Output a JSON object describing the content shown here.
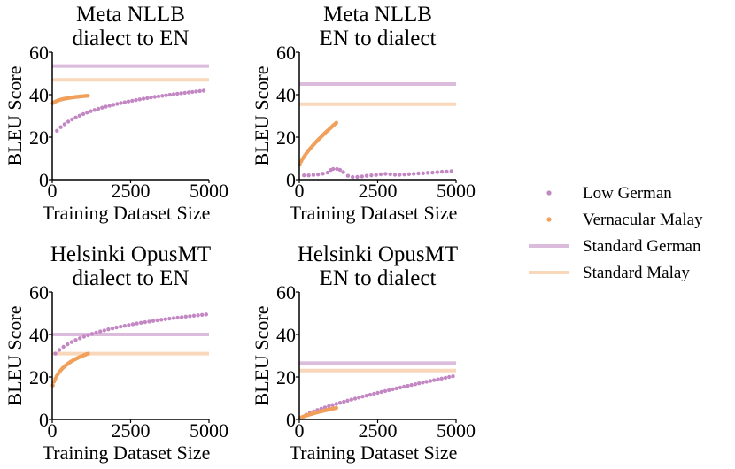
{
  "figure": {
    "legend": {
      "position": "right",
      "entries": [
        {
          "label": "Low German",
          "kind": "dots",
          "color": "#c387c3"
        },
        {
          "label": "Vernacular Malay",
          "kind": "dots",
          "color": "#f0a05a"
        },
        {
          "label": "Standard German",
          "kind": "line",
          "color": "#dcbcdc"
        },
        {
          "label": "Standard Malay",
          "kind": "line",
          "color": "#f9d7bb"
        }
      ]
    }
  },
  "chart_data": [
    {
      "type": "scatter",
      "title": [
        "Meta NLLB",
        "dialect to EN"
      ],
      "xlabel": "Training Dataset Size",
      "ylabel": "BLEU Score",
      "xlim": [
        0,
        5000
      ],
      "ylim": [
        0,
        60
      ],
      "xticks": [
        0,
        2500,
        5000
      ],
      "yticks": [
        0,
        20,
        40,
        60
      ],
      "hlines": [
        {
          "name": "Standard German",
          "value": 53.5
        },
        {
          "name": "Standard Malay",
          "value": 47
        }
      ],
      "series": [
        {
          "name": "Low German",
          "x_start": 150,
          "x_end": 4900,
          "step": 120,
          "curve": "log",
          "y_start": 23,
          "y_end": 42
        },
        {
          "name": "Vernacular Malay",
          "x_start": 20,
          "x_end": 1150,
          "step": 40,
          "curve": "log",
          "y_start": 36,
          "y_end": 39.5
        }
      ]
    },
    {
      "type": "scatter",
      "title": [
        "Meta NLLB",
        "EN to dialect"
      ],
      "xlabel": "Training Dataset Size",
      "ylabel": "BLEU Score",
      "xlim": [
        0,
        5000
      ],
      "ylim": [
        0,
        60
      ],
      "xticks": [
        0,
        2500,
        5000
      ],
      "yticks": [
        0,
        20,
        40,
        60
      ],
      "hlines": [
        {
          "name": "Standard German",
          "value": 45
        },
        {
          "name": "Standard Malay",
          "value": 35.5
        }
      ],
      "series": [
        {
          "name": "Low German",
          "points": [
            [
              150,
              2
            ],
            [
              300,
              2
            ],
            [
              450,
              2.2
            ],
            [
              600,
              2.4
            ],
            [
              750,
              2.8
            ],
            [
              900,
              3.3
            ],
            [
              1000,
              4.5
            ],
            [
              1080,
              5
            ],
            [
              1200,
              5
            ],
            [
              1300,
              4.6
            ],
            [
              1400,
              3.5
            ],
            [
              1550,
              1.8
            ],
            [
              1700,
              1.2
            ],
            [
              1850,
              1.3
            ],
            [
              2000,
              1.5
            ],
            [
              2150,
              1.8
            ],
            [
              2300,
              2
            ],
            [
              2450,
              2.2
            ],
            [
              2600,
              2.5
            ],
            [
              2750,
              2.7
            ],
            [
              2900,
              2.5
            ],
            [
              3050,
              2.3
            ],
            [
              3200,
              2.3
            ],
            [
              3350,
              2.4
            ],
            [
              3500,
              2.6
            ],
            [
              3650,
              2.7
            ],
            [
              3800,
              2.9
            ],
            [
              3950,
              3
            ],
            [
              4100,
              3.2
            ],
            [
              4250,
              3.3
            ],
            [
              4400,
              3.5
            ],
            [
              4550,
              3.7
            ],
            [
              4700,
              3.8
            ],
            [
              4850,
              4
            ]
          ]
        },
        {
          "name": "Vernacular Malay",
          "x_start": 20,
          "x_end": 1200,
          "step": 40,
          "curve": "pow",
          "y_start": 7,
          "y_end": 27
        }
      ]
    },
    {
      "type": "scatter",
      "title": [
        "Helsinki OpusMT",
        "dialect to EN"
      ],
      "xlabel": "Training Dataset Size",
      "ylabel": "BLEU Score",
      "xlim": [
        0,
        5000
      ],
      "ylim": [
        0,
        60
      ],
      "xticks": [
        0,
        2500,
        5000
      ],
      "yticks": [
        0,
        20,
        40,
        60
      ],
      "hlines": [
        {
          "name": "Standard German",
          "value": 40
        },
        {
          "name": "Standard Malay",
          "value": 31
        }
      ],
      "series": [
        {
          "name": "Low German",
          "x_start": 100,
          "x_end": 4950,
          "step": 130,
          "curve": "log",
          "y_start": 31,
          "y_end": 49.5
        },
        {
          "name": "Vernacular Malay",
          "x_start": 20,
          "x_end": 1150,
          "step": 40,
          "curve": "log",
          "y_start": 16,
          "y_end": 31
        }
      ]
    },
    {
      "type": "scatter",
      "title": [
        "Helsinki OpusMT",
        "EN to dialect"
      ],
      "xlabel": "Training Dataset Size",
      "ylabel": "BLEU Score",
      "xlim": [
        0,
        5000
      ],
      "ylim": [
        0,
        60
      ],
      "xticks": [
        0,
        2500,
        5000
      ],
      "yticks": [
        0,
        20,
        40,
        60
      ],
      "hlines": [
        {
          "name": "Standard German",
          "value": 26.5
        },
        {
          "name": "Standard Malay",
          "value": 23
        }
      ],
      "series": [
        {
          "name": "Low German",
          "x_start": 100,
          "x_end": 4950,
          "step": 120,
          "curve": "pow",
          "y_start": 1,
          "y_end": 20.5
        },
        {
          "name": "Vernacular Malay",
          "x_start": 20,
          "x_end": 1200,
          "step": 40,
          "curve": "pow",
          "y_start": 0.5,
          "y_end": 5.5
        }
      ]
    }
  ]
}
